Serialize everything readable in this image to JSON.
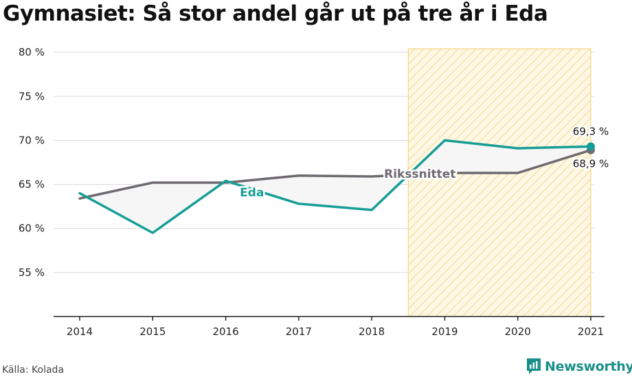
{
  "title": "Gymnasiet: Så stor andel går ut på tre år i Eda",
  "source": "Källa: Kolada",
  "brand": "Newsworthy",
  "colors": {
    "eda": "#169e96",
    "riks": "#6e6a70",
    "fill": "#f6f6f6",
    "highlight_fill": "#fdf7e4",
    "highlight_hatch": "#f3d98f",
    "grid": "#d9d9d9",
    "axis": "#222222",
    "brand": "#1a8f89"
  },
  "chart_data": {
    "type": "line",
    "title": "Gymnasiet: Så stor andel går ut på tre år i Eda",
    "x": [
      2014,
      2015,
      2016,
      2017,
      2018,
      2019,
      2020,
      2021
    ],
    "ylim": [
      50,
      80.4
    ],
    "yticks": [
      55,
      60,
      65,
      70,
      75,
      80
    ],
    "ytick_labels": [
      "55 %",
      "60 %",
      "65 %",
      "70 %",
      "75 %",
      "80 %"
    ],
    "grid": true,
    "highlight_range": [
      2018.5,
      2021
    ],
    "series": [
      {
        "name": "Eda",
        "values": [
          64.0,
          59.5,
          65.4,
          62.8,
          62.1,
          70.0,
          69.1,
          69.3
        ],
        "end_label": "69,3 %"
      },
      {
        "name": "Rikssnittet",
        "values": [
          63.4,
          65.2,
          65.2,
          66.0,
          65.9,
          66.3,
          66.3,
          68.9
        ],
        "end_label": "68,9 %"
      }
    ]
  }
}
